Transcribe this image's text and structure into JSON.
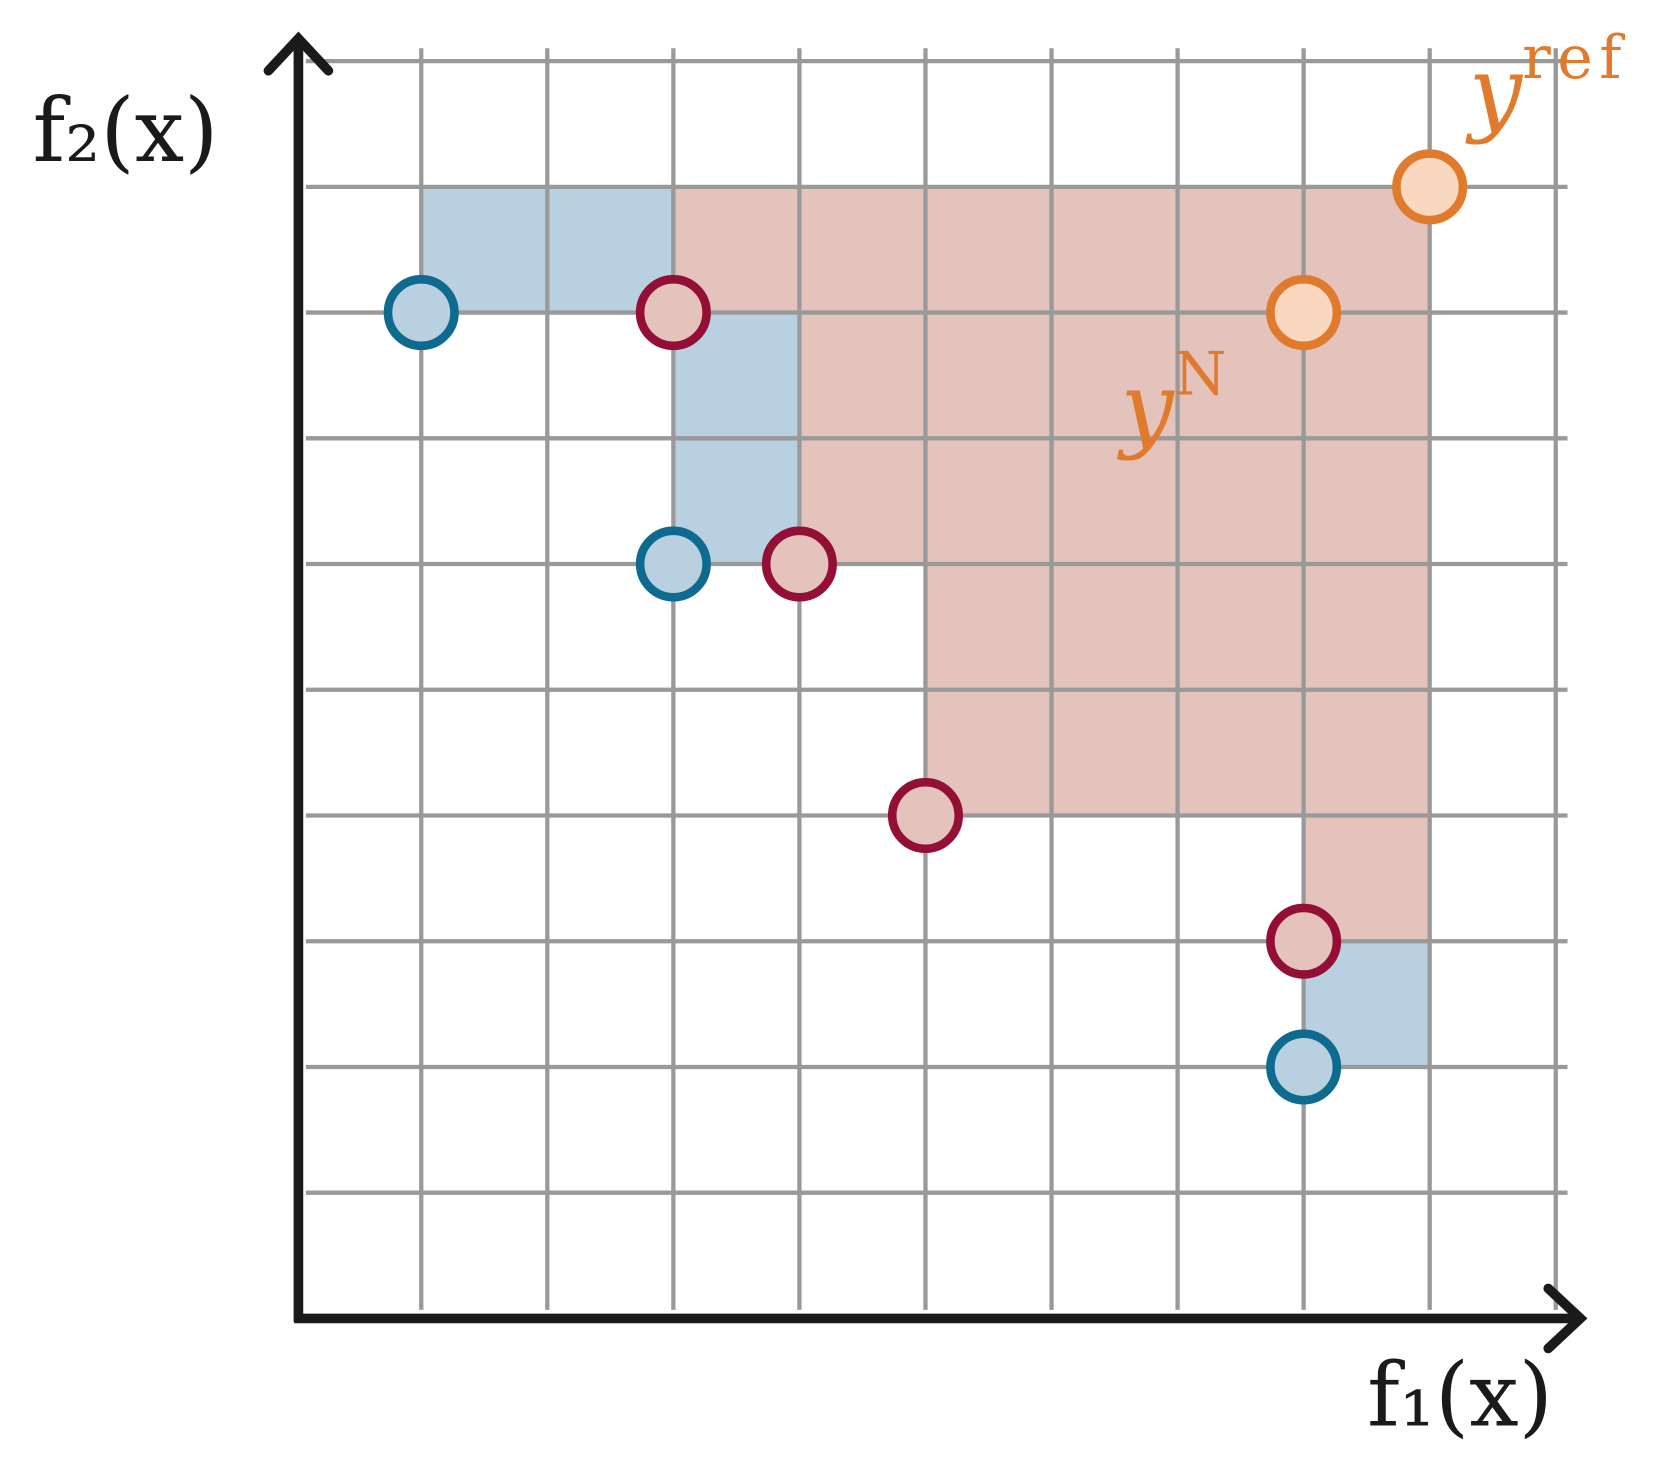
{
  "chart_data": {
    "type": "scatter",
    "x_label": "f₁(x)",
    "y_label": "f₂(x)",
    "xlim": [
      0,
      10
    ],
    "ylim": [
      0,
      10
    ],
    "xticks": [
      1,
      2,
      3,
      4,
      5,
      6,
      7,
      8,
      9,
      10
    ],
    "yticks": [
      1,
      2,
      3,
      4,
      5,
      6,
      7,
      8,
      9,
      10
    ],
    "grid": true,
    "series": [
      {
        "color": "#0f6a8f",
        "fill": "#b8d0e0",
        "region_color": "#b8d0e0",
        "x": [
          1,
          3,
          8
        ],
        "y": [
          8,
          6,
          2
        ]
      },
      {
        "color": "#930f35",
        "fill": "#e5c3bd",
        "region_color": "#e5c3bd",
        "x": [
          3,
          4,
          5,
          8
        ],
        "y": [
          8,
          6,
          4,
          3
        ]
      },
      {
        "color": "#e07b2d",
        "fill": "#f9d8bf",
        "x": [
          8
        ],
        "y": [
          8
        ],
        "label": "y",
        "label_sup": "N"
      }
    ],
    "reference": {
      "color": "#e07b2d",
      "fill": "#f9d8bf",
      "x": 9,
      "y": 9,
      "label": "y",
      "label_sup": "ref"
    }
  }
}
